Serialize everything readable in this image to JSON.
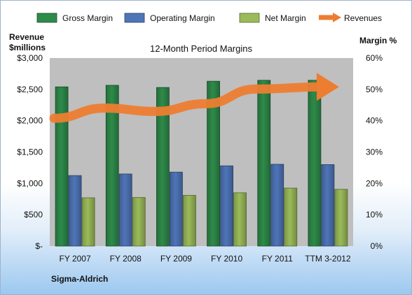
{
  "chart_data": {
    "type": "bar",
    "title": "12-Month Period Margins",
    "company": "Sigma-Aldrich",
    "ylabel_left": [
      "Revenue",
      "$millions"
    ],
    "ylabel_right": "Margin %",
    "categories": [
      "FY 2007",
      "FY 2008",
      "FY 2009",
      "FY 2010",
      "FY 2011",
      "TTM 3-2012"
    ],
    "left_axis": {
      "min": 0,
      "max": 3000,
      "ticks": [
        "$-",
        "$500",
        "$1,000",
        "$1,500",
        "$2,000",
        "$2,500",
        "$3,000"
      ]
    },
    "right_axis": {
      "min": 0,
      "max": 60,
      "ticks": [
        "0%",
        "10%",
        "20%",
        "30%",
        "40%",
        "50%",
        "60%"
      ]
    },
    "series": [
      {
        "name": "Gross Margin",
        "kind": "bar",
        "axis": "right",
        "color": "#2e8b4a",
        "values": [
          50.8,
          51.3,
          50.6,
          52.6,
          52.9,
          52.9
        ]
      },
      {
        "name": "Operating Margin",
        "kind": "bar",
        "axis": "right",
        "color": "#4f75b8",
        "values": [
          22.5,
          23.0,
          23.6,
          25.6,
          26.1,
          26.0
        ]
      },
      {
        "name": "Net Margin",
        "kind": "bar",
        "axis": "right",
        "color": "#9bbb59",
        "values": [
          15.4,
          15.5,
          16.2,
          17.0,
          18.5,
          18.1
        ]
      },
      {
        "name": "Revenues",
        "kind": "line",
        "axis": "left",
        "color": "#ed7d31",
        "values": [
          2039,
          2201,
          2148,
          2271,
          2505,
          2540
        ]
      }
    ],
    "grid": false,
    "legend": "top"
  }
}
